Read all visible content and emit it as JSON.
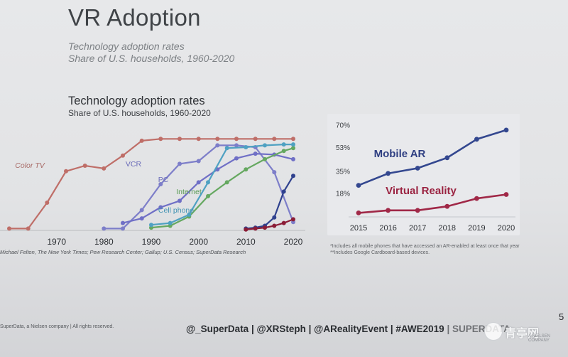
{
  "slide": {
    "title": "VR Adoption",
    "subtitle_line1": "Technology adoption rates",
    "subtitle_line2": "Share of U.S. households, 1960-2020",
    "page_number": "5",
    "copyright": "SuperData, a Nielsen company | All rights reserved.",
    "handles": "@_SuperData | @XRSteph | @ARealityEvent | #AWE2019",
    "handles_suffix": "| SUPERDATA",
    "watermark": "青亭网",
    "brand_small": "A NIELSEN COMPANY",
    "colors": {
      "background": "#e4e5e7",
      "title": "#3f4347"
    }
  },
  "chart_data": [
    {
      "type": "line",
      "title": "Technology adoption rates",
      "subtitle": "Share of U.S. households, 1960-2020",
      "x_ticks": [
        "1970",
        "1980",
        "1990",
        "2000",
        "2010",
        "2020"
      ],
      "xlim": [
        1960,
        2022
      ],
      "ylim": [
        0,
        100
      ],
      "grid": false,
      "legend": "inline labels",
      "source": "Michael Felton, The New York Times; Pew Research Center; Gallup; U.S. Census; SuperData Research",
      "series": [
        {
          "name": "Color TV",
          "color": "#bf6e68",
          "x": [
            1960,
            1964,
            1968,
            1972,
            1976,
            1980,
            1984,
            1988,
            1992,
            1996,
            2000,
            2004,
            2008,
            2012,
            2016,
            2020
          ],
          "y": [
            2,
            2,
            30,
            64,
            70,
            67,
            81,
            97,
            99,
            99,
            99,
            99,
            99,
            99,
            99,
            99
          ]
        },
        {
          "name": "VCR",
          "color": "#7d7ec9",
          "x": [
            1980,
            1984,
            1988,
            1992,
            1996,
            2000,
            2004,
            2008,
            2012,
            2016,
            2020
          ],
          "y": [
            2,
            2,
            22,
            50,
            72,
            75,
            92,
            92,
            90,
            63,
            9
          ]
        },
        {
          "name": "PC",
          "color": "#6f6fc6",
          "x": [
            1984,
            1988,
            1992,
            1996,
            2000,
            2004,
            2008,
            2012,
            2016,
            2020
          ],
          "y": [
            8,
            13,
            25,
            32,
            52,
            66,
            78,
            83,
            82,
            77
          ]
        },
        {
          "name": "Internet",
          "color": "#65a860",
          "x": [
            1990,
            1994,
            1998,
            2002,
            2006,
            2010,
            2014,
            2018,
            2020
          ],
          "y": [
            3,
            5,
            15,
            37,
            52,
            66,
            77,
            86,
            89
          ]
        },
        {
          "name": "Cell phone",
          "color": "#4fa1c2",
          "x": [
            1990,
            1994,
            1998,
            2002,
            2006,
            2010,
            2014,
            2018,
            2020
          ],
          "y": [
            6,
            8,
            17,
            52,
            89,
            90,
            92,
            93,
            93
          ]
        },
        {
          "name": "",
          "color": "#2f418e",
          "x": [
            2010,
            2012,
            2014,
            2016,
            2018,
            2020
          ],
          "y": [
            2,
            3,
            5,
            14,
            42,
            59
          ]
        },
        {
          "name": "",
          "color": "#8b1c36",
          "x": [
            2010,
            2012,
            2014,
            2016,
            2018,
            2020
          ],
          "y": [
            1,
            2,
            3,
            5,
            8,
            12
          ]
        }
      ]
    },
    {
      "type": "line",
      "x_ticks": [
        "2015",
        "2016",
        "2017",
        "2018",
        "2019",
        "2020"
      ],
      "y_ticks": [
        "18%",
        "35%",
        "53%",
        "70%"
      ],
      "ylim": [
        0,
        75
      ],
      "grid": false,
      "legend": "inline labels",
      "series": [
        {
          "name": "Mobile AR",
          "color": "#33478f",
          "x": [
            2015,
            2016,
            2017,
            2018,
            2019,
            2020
          ],
          "y": [
            24,
            33,
            37,
            45,
            59,
            66
          ]
        },
        {
          "name": "Virtual Reality",
          "color": "#a02847",
          "x": [
            2015,
            2016,
            2017,
            2018,
            2019,
            2020
          ],
          "y": [
            3,
            5,
            5,
            8,
            14,
            17
          ]
        }
      ]
    }
  ],
  "notes": {
    "note1": "*Includes all mobile phones that have accessed an AR-enabled at least once that year",
    "note2": "**Includes Google Cardboard-based devices."
  }
}
